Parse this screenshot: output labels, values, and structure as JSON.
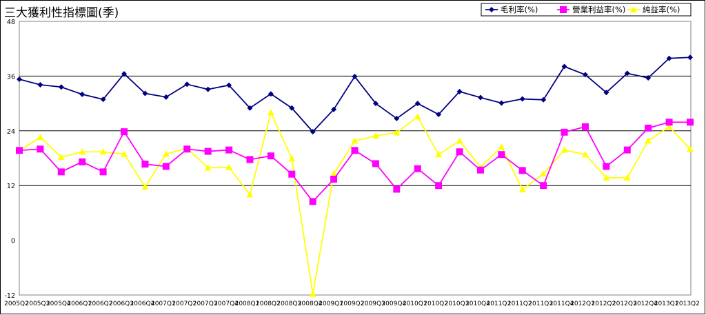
{
  "chart_data": {
    "type": "line",
    "title": "三大獲利性指標圖(季)",
    "ylim": [
      -12,
      48
    ],
    "yticks": [
      -12,
      0,
      12,
      24,
      36,
      48
    ],
    "grid_lines": [
      12,
      24,
      36
    ],
    "legend_position": "top-right",
    "categories": [
      "2005Q2",
      "2005Q3",
      "2005Q4",
      "2006Q1",
      "2006Q2",
      "2006Q3",
      "2006Q4",
      "2007Q1",
      "2007Q2",
      "2007Q3",
      "2007Q4",
      "2008Q1",
      "2008Q2",
      "2008Q3",
      "2008Q4",
      "2009Q1",
      "2009Q2",
      "2009Q3",
      "2009Q4",
      "2010Q1",
      "2010Q2",
      "2010Q3",
      "2010Q4",
      "2011Q1",
      "2011Q2",
      "2011Q3",
      "2011Q4",
      "2012Q1",
      "2012Q2",
      "2012Q3",
      "2012Q4",
      "2013Q1",
      "2013Q2"
    ],
    "series": [
      {
        "name": "毛利率(%)",
        "color": "#000080",
        "marker": "diamond",
        "values": [
          35.3,
          34.1,
          33.6,
          32.0,
          30.9,
          36.5,
          32.2,
          31.4,
          34.2,
          33.1,
          34.0,
          29.0,
          32.1,
          29.0,
          23.8,
          28.7,
          35.9,
          30.0,
          26.7,
          30.0,
          27.6,
          32.6,
          31.3,
          30.1,
          31.0,
          30.8,
          38.1,
          36.3,
          32.4,
          36.6,
          35.6,
          39.9,
          40.1
        ]
      },
      {
        "name": "營業利益率(%)",
        "color": "#ff00ff",
        "marker": "square",
        "values": [
          19.7,
          20.0,
          15.0,
          17.2,
          15.0,
          23.8,
          16.7,
          16.2,
          20.0,
          19.5,
          19.8,
          17.7,
          18.5,
          14.5,
          8.5,
          13.4,
          19.7,
          16.8,
          11.2,
          15.7,
          12.0,
          19.4,
          15.4,
          18.8,
          15.3,
          12.0,
          23.7,
          24.9,
          16.2,
          19.8,
          24.6,
          25.9,
          25.9
        ]
      },
      {
        "name": "純益率(%)",
        "color": "#ffff00",
        "marker": "triangle",
        "values": [
          19.6,
          22.6,
          18.2,
          19.4,
          19.4,
          18.9,
          11.7,
          18.9,
          20.2,
          15.9,
          16.0,
          10.0,
          28.0,
          17.9,
          -11.8,
          14.6,
          21.8,
          22.9,
          23.6,
          27.1,
          18.8,
          21.8,
          16.0,
          20.5,
          11.1,
          14.6,
          19.8,
          18.8,
          13.7,
          13.7,
          21.8,
          24.9,
          20.0
        ]
      }
    ]
  }
}
